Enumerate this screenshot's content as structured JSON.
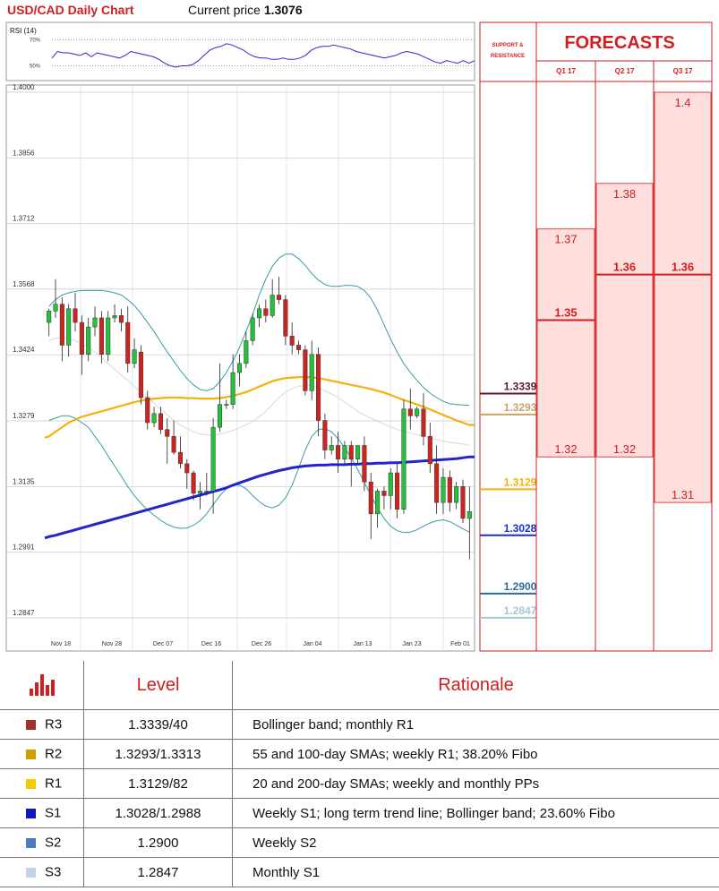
{
  "header": {
    "title": "USD/CAD Daily Chart",
    "price_label": "Current price",
    "price_value": "1.3076"
  },
  "colors": {
    "up": "#22c23b",
    "down": "#d0231e",
    "sma200": "#2424cc",
    "sma_mid": "#f2b20c",
    "bollinger": "#3a9aa8",
    "sma20": "#d8d8d8",
    "accent": "#d11e1e"
  },
  "chart_data": [
    {
      "type": "line",
      "title": "RSI (14)",
      "y_ticks": [
        "70%",
        "50%"
      ],
      "ylim": [
        40,
        80
      ],
      "values": [
        56,
        61,
        60,
        60,
        59,
        58,
        60,
        57,
        60,
        59,
        58,
        57,
        56,
        58,
        61,
        60,
        59,
        58,
        57,
        55,
        52,
        50,
        49,
        50,
        50,
        51,
        54,
        58,
        62,
        64,
        65,
        67,
        66,
        64,
        62,
        59,
        57,
        56,
        56,
        55,
        55,
        56,
        55,
        55,
        56,
        58,
        62,
        64,
        65,
        65,
        66,
        65,
        64,
        63,
        61,
        60,
        59,
        58,
        57,
        56,
        57,
        58,
        60,
        61,
        60,
        59,
        57,
        55,
        53,
        52,
        54,
        53,
        52,
        54,
        52,
        54
      ]
    },
    {
      "type": "candlestick",
      "x_ticks": [
        "Nov 18",
        "Nov 28",
        "Dec 07",
        "Dec 16",
        "Dec 26",
        "Jan 04",
        "Jan 13",
        "Jan 23",
        "Feb 01"
      ],
      "y_ticks": [
        "1.4000",
        "1.3856",
        "1.3712",
        "1.3568",
        "1.3424",
        "1.3279",
        "1.3135",
        "1.2991",
        "1.2847"
      ],
      "ylim": [
        1.278,
        1.4
      ],
      "grid": true,
      "candles": [
        [
          1.3495,
          1.3525,
          1.3465,
          1.352
        ],
        [
          1.352,
          1.359,
          1.3505,
          1.3535
        ],
        [
          1.3535,
          1.355,
          1.341,
          1.3445
        ],
        [
          1.3445,
          1.3535,
          1.342,
          1.3525
        ],
        [
          1.3525,
          1.356,
          1.3475,
          1.3495
        ],
        [
          1.3495,
          1.351,
          1.338,
          1.3425
        ],
        [
          1.3425,
          1.3505,
          1.341,
          1.3485
        ],
        [
          1.3485,
          1.353,
          1.3465,
          1.3505
        ],
        [
          1.3505,
          1.352,
          1.3405,
          1.3425
        ],
        [
          1.3425,
          1.352,
          1.341,
          1.3505
        ],
        [
          1.3505,
          1.3535,
          1.3495,
          1.351
        ],
        [
          1.351,
          1.3525,
          1.3475,
          1.3495
        ],
        [
          1.3495,
          1.353,
          1.3385,
          1.3405
        ],
        [
          1.3405,
          1.346,
          1.3395,
          1.3435
        ],
        [
          1.343,
          1.3445,
          1.3315,
          1.333
        ],
        [
          1.333,
          1.3345,
          1.326,
          1.3275
        ],
        [
          1.3275,
          1.331,
          1.3265,
          1.3295
        ],
        [
          1.3295,
          1.331,
          1.325,
          1.326
        ],
        [
          1.326,
          1.3285,
          1.3185,
          1.3245
        ],
        [
          1.3245,
          1.328,
          1.3205,
          1.321
        ],
        [
          1.321,
          1.3245,
          1.3175,
          1.3185
        ],
        [
          1.3185,
          1.3195,
          1.313,
          1.3165
        ],
        [
          1.3165,
          1.317,
          1.3105,
          1.312
        ],
        [
          1.312,
          1.3145,
          1.3085,
          1.3125
        ],
        [
          1.3125,
          1.3165,
          1.3115,
          1.3125
        ],
        [
          1.3125,
          1.3285,
          1.3075,
          1.3265
        ],
        [
          1.3265,
          1.3405,
          1.3255,
          1.3315
        ],
        [
          1.3315,
          1.3325,
          1.3305,
          1.3315
        ],
        [
          1.3315,
          1.3425,
          1.3305,
          1.3385
        ],
        [
          1.3385,
          1.3425,
          1.3355,
          1.3405
        ],
        [
          1.3405,
          1.3475,
          1.3395,
          1.3455
        ],
        [
          1.3455,
          1.3515,
          1.3445,
          1.3505
        ],
        [
          1.3505,
          1.3535,
          1.3485,
          1.3525
        ],
        [
          1.3525,
          1.3545,
          1.3495,
          1.351
        ],
        [
          1.351,
          1.359,
          1.3505,
          1.3555
        ],
        [
          1.3555,
          1.3595,
          1.3535,
          1.3545
        ],
        [
          1.3545,
          1.3555,
          1.3445,
          1.3465
        ],
        [
          1.3465,
          1.3495,
          1.3425,
          1.3445
        ],
        [
          1.3445,
          1.3455,
          1.3425,
          1.3435
        ],
        [
          1.3435,
          1.3445,
          1.3335,
          1.3345
        ],
        [
          1.3345,
          1.3455,
          1.3325,
          1.3425
        ],
        [
          1.3425,
          1.344,
          1.3245,
          1.328
        ],
        [
          1.328,
          1.3295,
          1.3195,
          1.3215
        ],
        [
          1.3215,
          1.3245,
          1.3205,
          1.3225
        ],
        [
          1.3225,
          1.3255,
          1.3165,
          1.3195
        ],
        [
          1.3195,
          1.3235,
          1.3185,
          1.3225
        ],
        [
          1.3225,
          1.3235,
          1.3135,
          1.3195
        ],
        [
          1.3195,
          1.3225,
          1.3185,
          1.3225
        ],
        [
          1.3225,
          1.3245,
          1.3125,
          1.3145
        ],
        [
          1.3145,
          1.3165,
          1.302,
          1.3075
        ],
        [
          1.3075,
          1.313,
          1.3045,
          1.3125
        ],
        [
          1.3125,
          1.3135,
          1.3085,
          1.3115
        ],
        [
          1.3115,
          1.3175,
          1.3085,
          1.3165
        ],
        [
          1.3165,
          1.3185,
          1.3065,
          1.3085
        ],
        [
          1.3085,
          1.3325,
          1.3075,
          1.3305
        ],
        [
          1.3305,
          1.335,
          1.326,
          1.329
        ],
        [
          1.329,
          1.331,
          1.3285,
          1.3305
        ],
        [
          1.3305,
          1.334,
          1.3225,
          1.3245
        ],
        [
          1.3245,
          1.3275,
          1.3165,
          1.3185
        ],
        [
          1.3185,
          1.3225,
          1.3075,
          1.31
        ],
        [
          1.31,
          1.3175,
          1.3075,
          1.3155
        ],
        [
          1.3155,
          1.317,
          1.308,
          1.31
        ],
        [
          1.31,
          1.3145,
          1.3085,
          1.3135
        ],
        [
          1.3135,
          1.315,
          1.3055,
          1.3065
        ],
        [
          1.3065,
          1.3135,
          1.2975,
          1.308
        ]
      ],
      "sma200": [
        1.3025,
        1.3028,
        1.3032,
        1.3036,
        1.304,
        1.3044,
        1.3048,
        1.3052,
        1.3056,
        1.306,
        1.3064,
        1.3068,
        1.3072,
        1.3076,
        1.308,
        1.3084,
        1.3088,
        1.3092,
        1.3096,
        1.31,
        1.3104,
        1.3108,
        1.3112,
        1.3116,
        1.312,
        1.3124,
        1.3128,
        1.3132,
        1.3138,
        1.3143,
        1.3148,
        1.3153,
        1.3158,
        1.3162,
        1.3166,
        1.317,
        1.3173,
        1.3176,
        1.3178,
        1.318,
        1.3181,
        1.3182,
        1.3182,
        1.3183,
        1.3183,
        1.3183,
        1.3184,
        1.3184,
        1.3185,
        1.3185,
        1.3186,
        1.3186,
        1.3187,
        1.3187,
        1.3188,
        1.3189,
        1.319,
        1.3191,
        1.3192,
        1.3193,
        1.3194,
        1.3195,
        1.3196,
        1.3198,
        1.32
      ],
      "sma_mid": [
        1.3245,
        1.3255,
        1.3265,
        1.3275,
        1.3282,
        1.3288,
        1.3292,
        1.3296,
        1.33,
        1.3304,
        1.3308,
        1.3312,
        1.3316,
        1.332,
        1.3323,
        1.3326,
        1.3328,
        1.3329,
        1.333,
        1.333,
        1.333,
        1.3329,
        1.3329,
        1.3328,
        1.3328,
        1.3328,
        1.3329,
        1.3331,
        1.3334,
        1.3338,
        1.3342,
        1.3348,
        1.3354,
        1.336,
        1.3366,
        1.337,
        1.3373,
        1.3374,
        1.3375,
        1.3375,
        1.3375,
        1.3373,
        1.337,
        1.3367,
        1.3364,
        1.3361,
        1.3358,
        1.3355,
        1.3352,
        1.3349,
        1.3345,
        1.3341,
        1.3336,
        1.333,
        1.3325,
        1.332,
        1.3315,
        1.331,
        1.3304,
        1.3298,
        1.3292,
        1.3286,
        1.328,
        1.3275,
        1.327
      ],
      "sma20": [
        1.3455,
        1.346,
        1.3462,
        1.346,
        1.3455,
        1.3448,
        1.344,
        1.343,
        1.3418,
        1.3405,
        1.3392,
        1.338,
        1.3368,
        1.3355,
        1.3342,
        1.333,
        1.3318,
        1.3305,
        1.3292,
        1.328,
        1.327,
        1.3262,
        1.3255,
        1.325,
        1.3248,
        1.3248,
        1.325,
        1.3254,
        1.3258,
        1.3264,
        1.327,
        1.3278,
        1.3288,
        1.33,
        1.3315,
        1.333,
        1.3342,
        1.335,
        1.3355,
        1.3357,
        1.3356,
        1.3352,
        1.3345,
        1.3338,
        1.333,
        1.332,
        1.331,
        1.33,
        1.3292,
        1.3285,
        1.3278,
        1.3272,
        1.3266,
        1.326,
        1.3256,
        1.3252,
        1.3249,
        1.3245,
        1.3242,
        1.3238,
        1.3235,
        1.3232,
        1.323,
        1.3228,
        1.3225
      ],
      "bb_upper": [
        1.353,
        1.3545,
        1.3555,
        1.356,
        1.3563,
        1.3565,
        1.3565,
        1.3565,
        1.3565,
        1.3563,
        1.356,
        1.3555,
        1.3545,
        1.3532,
        1.3515,
        1.3495,
        1.3475,
        1.3452,
        1.343,
        1.341,
        1.339,
        1.3372,
        1.3358,
        1.3348,
        1.3345,
        1.335,
        1.3365,
        1.3385,
        1.341,
        1.344,
        1.3475,
        1.3512,
        1.3555,
        1.359,
        1.3618,
        1.3636,
        1.3645,
        1.3645,
        1.3635,
        1.362,
        1.3602,
        1.3588,
        1.3578,
        1.3574,
        1.3574,
        1.3576,
        1.3576,
        1.3574,
        1.3565,
        1.3548,
        1.3522,
        1.349,
        1.3458,
        1.343,
        1.3405,
        1.3385,
        1.3368,
        1.3352,
        1.334,
        1.333,
        1.3322,
        1.3317,
        1.3315,
        1.3314,
        1.3313
      ],
      "bb_lower": [
        1.328,
        1.3285,
        1.329,
        1.329,
        1.3285,
        1.3275,
        1.3265,
        1.3245,
        1.3225,
        1.3202,
        1.318,
        1.3158,
        1.3135,
        1.3115,
        1.3098,
        1.3084,
        1.3072,
        1.3061,
        1.3052,
        1.3046,
        1.3043,
        1.3044,
        1.305,
        1.306,
        1.3075,
        1.3095,
        1.3115,
        1.313,
        1.3138,
        1.3138,
        1.313,
        1.3115,
        1.3102,
        1.3092,
        1.3088,
        1.3094,
        1.311,
        1.3138,
        1.3175,
        1.3215,
        1.3245,
        1.326,
        1.3262,
        1.3255,
        1.324,
        1.322,
        1.3198,
        1.3172,
        1.3144,
        1.3115,
        1.3088,
        1.3065,
        1.3048,
        1.3038,
        1.3034,
        1.3035,
        1.304,
        1.3048,
        1.3055,
        1.306,
        1.3062,
        1.3058,
        1.305,
        1.3042,
        1.3035
      ]
    },
    {
      "type": "table",
      "title": "FORECASTS",
      "columns": [
        "Q1 17",
        "Q2 17",
        "Q3 17"
      ],
      "values": [
        {
          "high": "1.37",
          "mid": "1.35",
          "low": "1.32"
        },
        {
          "high": "1.38",
          "mid": "1.36",
          "low": "1.32"
        },
        {
          "high": "1.4",
          "mid": "1.36",
          "low": "1.31"
        }
      ]
    }
  ],
  "sr_panel": {
    "heading_line1": "SUPPORT &",
    "heading_line2": "RESISTANCE",
    "levels": [
      {
        "value": "1.3339",
        "color": "#5a1a2e"
      },
      {
        "value": "1.3293",
        "color": "#c8a46a"
      },
      {
        "value": "1.3129",
        "color": "#f2b20c"
      },
      {
        "value": "1.3028",
        "color": "#1a2ec8"
      },
      {
        "value": "1.2900",
        "color": "#2a6ea0"
      },
      {
        "value": "1.2847",
        "color": "#a8c8d0"
      }
    ]
  },
  "table": {
    "header_level": "Level",
    "header_rationale": "Rationale",
    "rows": [
      {
        "label": "R3",
        "color": "#a3312b",
        "level": "1.3339/40",
        "rationale": "Bollinger band; monthly R1"
      },
      {
        "label": "R2",
        "color": "#d0a000",
        "level": "1.3293/1.3313",
        "rationale": "55 and 100-day SMAs; weekly R1; 38.20% Fibo"
      },
      {
        "label": "R1",
        "color": "#f7c804",
        "level": "1.3129/82",
        "rationale": "20 and 200-day SMAs; weekly and monthly PPs"
      },
      {
        "label": "S1",
        "color": "#1018c0",
        "level": "1.3028/1.2988",
        "rationale": "Weekly S1; long term trend line; Bollinger band; 23.60% Fibo"
      },
      {
        "label": "S2",
        "color": "#4a7cc0",
        "level": "1.2900",
        "rationale": "Weekly S2"
      },
      {
        "label": "S3",
        "color": "#c0d2ec",
        "level": "1.2847",
        "rationale": "Monthly S1"
      }
    ]
  }
}
